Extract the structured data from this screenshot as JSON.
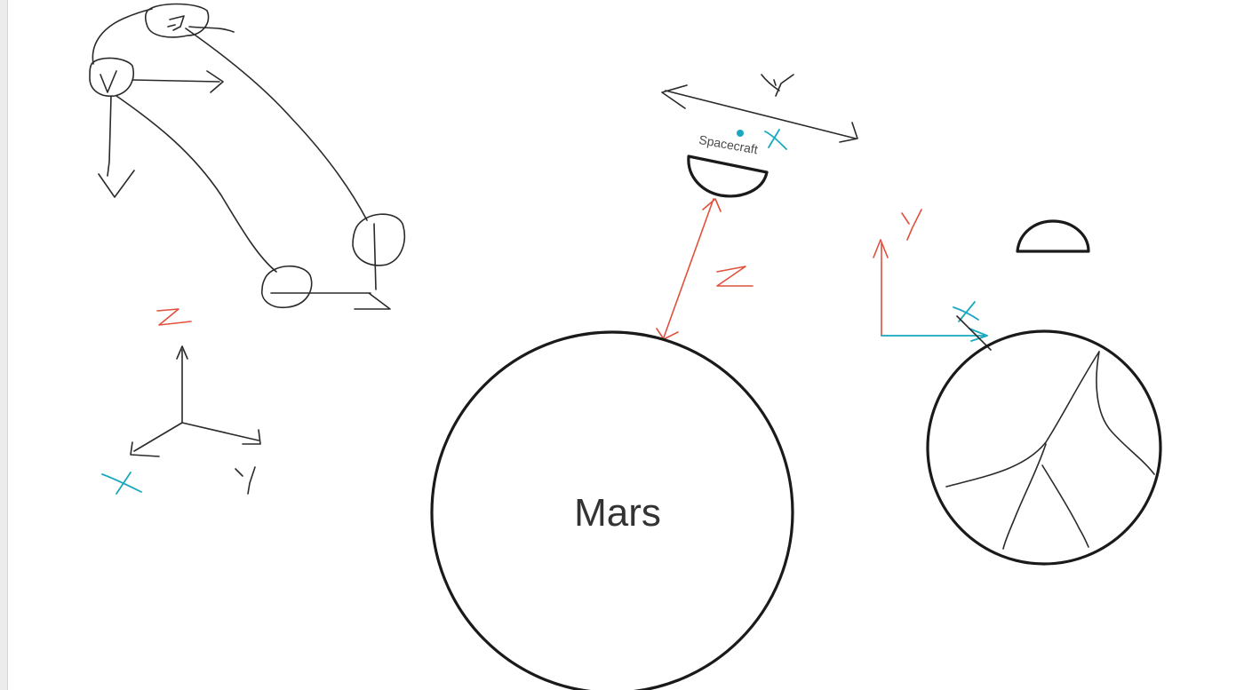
{
  "canvas": {
    "background": "#ffffff",
    "page_background": "#ececec"
  },
  "colors": {
    "ink": "#1a1a1a",
    "red_axis": "#e0503c",
    "cyan_axis": "#1aa8bf",
    "label_gray": "#4a4a4a"
  },
  "labels": {
    "planet": "Mars",
    "spacecraft": "Spacecraft"
  },
  "handwritten_marks": {
    "left_axes": [
      "Z",
      "X",
      "Y"
    ],
    "spacecraft_axes": [
      "Y",
      "X",
      "Z"
    ],
    "right_axes": [
      "Y",
      "X"
    ]
  }
}
